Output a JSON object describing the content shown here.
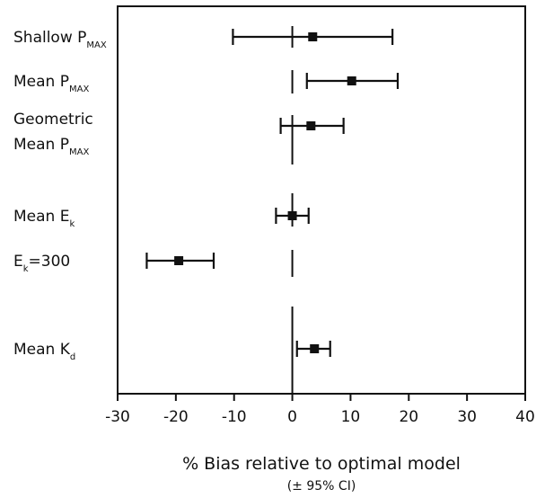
{
  "chart_data": {
    "type": "forest",
    "xlabel": "% Bias relative to optimal model",
    "xlabel_sub": "(± 95% CI)",
    "xlim": [
      -30,
      40
    ],
    "xticks": [
      -30,
      -20,
      -10,
      0,
      10,
      20,
      30,
      40
    ],
    "reference_line": 0,
    "rows": [
      {
        "label_main": "Shallow P",
        "label_sub": "MAX",
        "estimate": 3.5,
        "lower": -10.2,
        "upper": 17.2
      },
      {
        "label_main": "Mean P",
        "label_sub": "MAX",
        "estimate": 10.2,
        "lower": 2.5,
        "upper": 18.1
      },
      {
        "label_line1": "Geometric",
        "label_main": "Mean P",
        "label_sub": "MAX",
        "estimate": 3.2,
        "lower": -2.0,
        "upper": 8.8
      },
      {
        "label_main": "Mean E",
        "label_sub": "k",
        "estimate": 0.0,
        "lower": -2.8,
        "upper": 2.8
      },
      {
        "label_main": "E",
        "label_sub": "k",
        "label_suffix": "=300",
        "estimate": -19.5,
        "lower": -25.0,
        "upper": -13.5
      },
      {
        "label_main": "Mean K",
        "label_sub": "d",
        "estimate": 3.8,
        "lower": 0.8,
        "upper": 6.5
      }
    ]
  }
}
